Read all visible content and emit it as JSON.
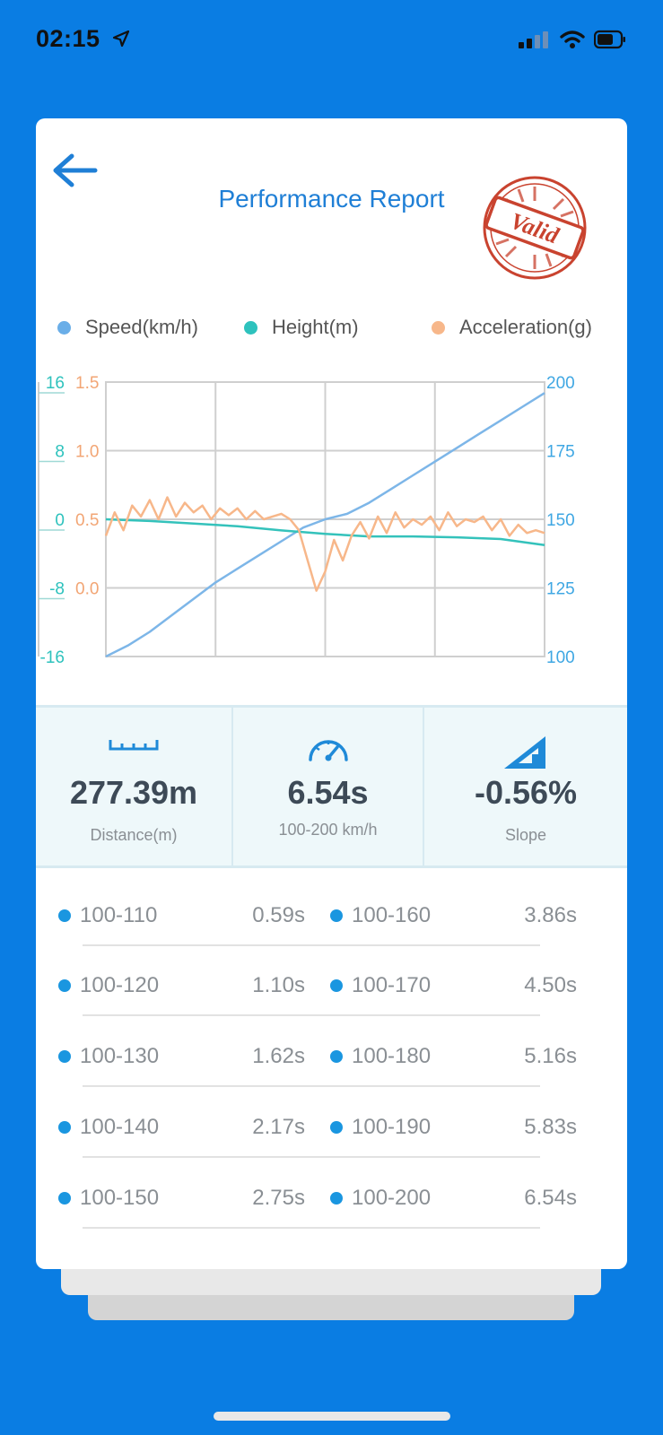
{
  "status_bar": {
    "time": "02:15"
  },
  "header": {
    "title": "Performance Report",
    "stamp_text": "Valid"
  },
  "legend": [
    {
      "label": "Speed(km/h)",
      "color": "#6aaee8"
    },
    {
      "label": "Height(m)",
      "color": "#2ec2bd"
    },
    {
      "label": "Acceleration(g)",
      "color": "#f7b78a"
    }
  ],
  "chart_data": {
    "type": "line",
    "title": "",
    "x_grid_divisions": 4,
    "y_left_height": {
      "ticks": [
        "16",
        "8",
        "0",
        "-8",
        "-16"
      ],
      "range": [
        -16,
        16
      ],
      "color": "#2ec2bd"
    },
    "y_left_accel": {
      "ticks": [
        "1.5",
        "1.0",
        "0.5",
        "0.0"
      ],
      "range": [
        -0.5,
        1.5
      ],
      "color": "#f2a574"
    },
    "y_right_speed": {
      "ticks": [
        "200",
        "175",
        "150",
        "125",
        "100"
      ],
      "range": [
        100,
        200
      ],
      "color": "#3fa7e3"
    },
    "grid": true,
    "series": [
      {
        "name": "Speed(km/h)",
        "axis": "speed",
        "color": "#7db6e8",
        "x": [
          0,
          0.05,
          0.1,
          0.15,
          0.2,
          0.25,
          0.3,
          0.35,
          0.4,
          0.45,
          0.5,
          0.55,
          0.6,
          0.65,
          0.7,
          0.75,
          0.8,
          0.85,
          0.9,
          0.95,
          1.0
        ],
        "y": [
          100,
          104,
          109,
          115,
          121,
          127,
          132,
          137,
          142,
          147,
          150,
          152,
          156,
          161,
          166,
          171,
          176,
          181,
          186,
          191,
          196
        ]
      },
      {
        "name": "Height(m)",
        "axis": "height",
        "color": "#34c2bb",
        "x": [
          0,
          0.1,
          0.2,
          0.3,
          0.4,
          0.5,
          0.6,
          0.7,
          0.8,
          0.9,
          1.0
        ],
        "y": [
          0,
          -0.2,
          -0.5,
          -0.8,
          -1.3,
          -1.7,
          -2.0,
          -2.0,
          -2.1,
          -2.3,
          -3.0
        ]
      },
      {
        "name": "Acceleration(g)",
        "axis": "accel",
        "color": "#f7b78a",
        "x": [
          0,
          0.02,
          0.04,
          0.06,
          0.08,
          0.1,
          0.12,
          0.14,
          0.16,
          0.18,
          0.2,
          0.22,
          0.24,
          0.26,
          0.28,
          0.3,
          0.32,
          0.34,
          0.36,
          0.38,
          0.4,
          0.42,
          0.44,
          0.46,
          0.48,
          0.5,
          0.52,
          0.54,
          0.56,
          0.58,
          0.6,
          0.62,
          0.64,
          0.66,
          0.68,
          0.7,
          0.72,
          0.74,
          0.76,
          0.78,
          0.8,
          0.82,
          0.84,
          0.86,
          0.88,
          0.9,
          0.92,
          0.94,
          0.96,
          0.98,
          1.0
        ],
        "y": [
          0.38,
          0.55,
          0.42,
          0.6,
          0.52,
          0.64,
          0.5,
          0.66,
          0.52,
          0.62,
          0.55,
          0.6,
          0.5,
          0.58,
          0.53,
          0.58,
          0.5,
          0.56,
          0.5,
          0.52,
          0.54,
          0.5,
          0.42,
          0.2,
          -0.02,
          0.12,
          0.35,
          0.2,
          0.38,
          0.48,
          0.36,
          0.52,
          0.4,
          0.55,
          0.44,
          0.5,
          0.46,
          0.52,
          0.42,
          0.55,
          0.45,
          0.5,
          0.48,
          0.52,
          0.42,
          0.5,
          0.38,
          0.46,
          0.4,
          0.42,
          0.4
        ]
      }
    ]
  },
  "stats": [
    {
      "value": "277.39m",
      "label": "Distance(m)",
      "icon": "ruler-icon"
    },
    {
      "value": "6.54s",
      "label": "100-200 km/h",
      "icon": "speedometer-icon"
    },
    {
      "value": "-0.56%",
      "label": "Slope",
      "icon": "slope-icon"
    }
  ],
  "splits_left": [
    {
      "range": "100-110",
      "time": "0.59s"
    },
    {
      "range": "100-120",
      "time": "1.10s"
    },
    {
      "range": "100-130",
      "time": "1.62s"
    },
    {
      "range": "100-140",
      "time": "2.17s"
    },
    {
      "range": "100-150",
      "time": "2.75s"
    }
  ],
  "splits_right": [
    {
      "range": "100-160",
      "time": "3.86s"
    },
    {
      "range": "100-170",
      "time": "4.50s"
    },
    {
      "range": "100-180",
      "time": "5.16s"
    },
    {
      "range": "100-190",
      "time": "5.83s"
    },
    {
      "range": "100-200",
      "time": "6.54s"
    }
  ]
}
